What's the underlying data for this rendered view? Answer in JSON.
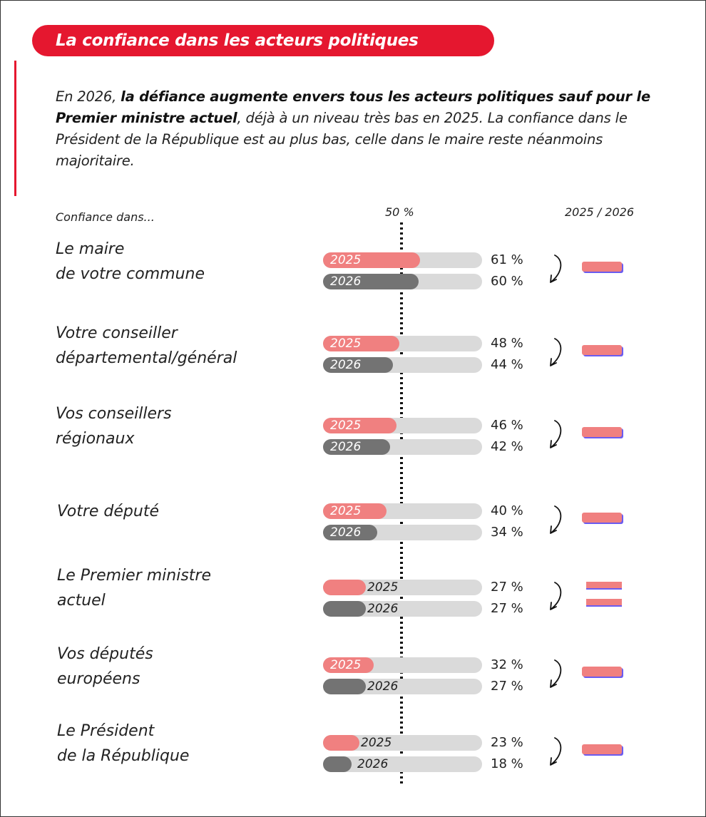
{
  "header": {
    "title": "La confiance dans les acteurs politiques"
  },
  "intro": {
    "part1": "En 2026, ",
    "bold": "la défiance augmente envers tous les acteurs politiques sauf pour le Premier ministre actuel",
    "part2": ", déjà à un niveau très bas en 2025. La confiance dans le Président de la République est au plus bas, celle dans le maire reste néanmoins majoritaire."
  },
  "columns": {
    "label": "Confiance dans...",
    "threshold": "50 %",
    "compare": "2025 / 2026"
  },
  "colors": {
    "accent": "#e5172f",
    "y2025": "#f08080",
    "y2026": "#737373",
    "track": "#dadada",
    "change_shadow": "#6a5cf0"
  },
  "chart_data": {
    "type": "bar",
    "title": "La confiance dans les acteurs politiques",
    "xlabel": "Confiance dans...",
    "ylabel": "",
    "xlim": [
      0,
      100
    ],
    "reference_line": {
      "value": 50,
      "label": "50 %"
    },
    "categories": [
      "Le maire de votre commune",
      "Votre conseiller départemental/général",
      "Vos conseillers régionaux",
      "Votre député",
      "Le Premier ministre actuel",
      "Vos députés européens",
      "Le Président de la République"
    ],
    "category_lines": [
      [
        "Le maire",
        "de votre commune"
      ],
      [
        "Votre conseiller",
        "départemental/général"
      ],
      [
        "Vos conseillers",
        "régionaux"
      ],
      [
        "Votre député"
      ],
      [
        "Le Premier ministre",
        "actuel"
      ],
      [
        "Vos députés",
        "européens"
      ],
      [
        "Le Président",
        "de la République"
      ]
    ],
    "series": [
      {
        "name": "2025",
        "values": [
          61,
          48,
          46,
          40,
          27,
          32,
          23
        ]
      },
      {
        "name": "2026",
        "values": [
          60,
          44,
          42,
          34,
          27,
          27,
          18
        ]
      }
    ],
    "value_labels": {
      "2025": [
        "61 %",
        "48 %",
        "46 %",
        "40 %",
        "27 %",
        "32 %",
        "23 %"
      ],
      "2026": [
        "60 %",
        "44 %",
        "42 %",
        "34 %",
        "27 %",
        "27 %",
        "18 %"
      ]
    },
    "trend": [
      "down",
      "down",
      "down",
      "down",
      "equal",
      "down",
      "down"
    ],
    "legend": [
      "2025",
      "2026"
    ]
  }
}
